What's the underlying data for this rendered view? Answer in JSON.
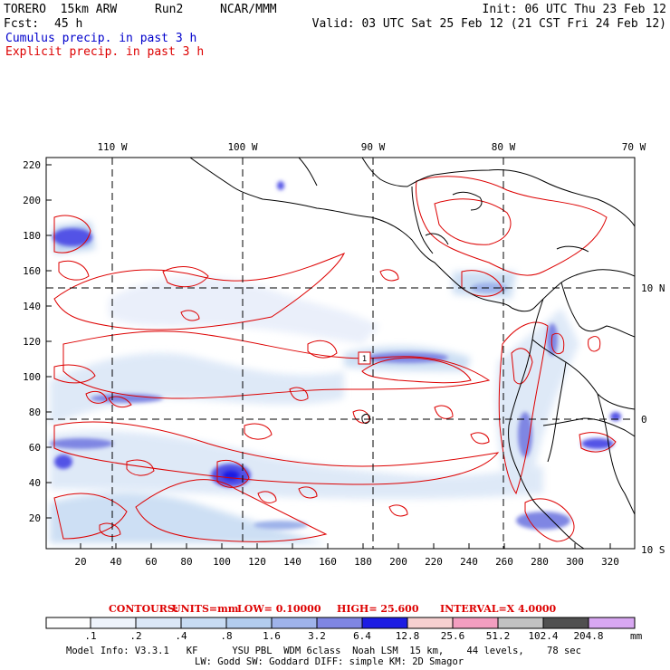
{
  "header": {
    "model": "TORERO  15km ARW",
    "run": "Run2",
    "org": "NCAR/MMM",
    "init": "Init: 06 UTC Thu 23 Feb 12",
    "fcst_label": "Fcst:",
    "fcst_value": "45 h",
    "valid": "Valid: 03 UTC Sat 25 Feb 12 (21 CST Fri 24 Feb 12)",
    "field1": "Cumulus precip. in past 3 h",
    "field2": "Explicit precip. in past 3 h"
  },
  "map": {
    "lon_labels": [
      "110 W",
      "100 W",
      "90 W",
      "80 W",
      "70 W"
    ],
    "lat_labels": [
      "10 N",
      "0",
      "10 S"
    ],
    "y_ticks": [
      "220",
      "200",
      "180",
      "160",
      "140",
      "120",
      "100",
      "80",
      "60",
      "40",
      "20"
    ],
    "x_ticks": [
      "20",
      "40",
      "60",
      "80",
      "100",
      "120",
      "140",
      "160",
      "180",
      "200",
      "220",
      "240",
      "260",
      "280",
      "300",
      "320"
    ],
    "point_marker": "1"
  },
  "contour_info": {
    "label": "CONTOURS:",
    "units": "UNITS=mm",
    "low": "LOW= 0.10000",
    "high": "HIGH=  25.600",
    "interval": "INTERVAL=X  4.0000"
  },
  "colorbar": {
    "labels": [
      ".1",
      ".2",
      ".4",
      ".8",
      "1.6",
      "3.2",
      "6.4",
      "12.8",
      "25.6",
      "51.2",
      "102.4",
      "204.8"
    ],
    "unit": "mm",
    "colors": [
      "#ffffff",
      "#eef3fb",
      "#dbe7f7",
      "#c8dcf3",
      "#b3cdee",
      "#9fb3ea",
      "#7f86e3",
      "#5252e6",
      "#1d1de3",
      "#f7d1d1",
      "#f39ec0",
      "#c2c2c2",
      "#505050",
      "#d8a8f2"
    ]
  },
  "footer": {
    "line1": "Model Info: V3.3.1   KF      YSU PBL  WDM 6class  Noah LSM  15 km,    44 levels,    78 sec",
    "line2": "LW: Godd SW: Goddard DIFF: simple KM: 2D Smagor"
  }
}
